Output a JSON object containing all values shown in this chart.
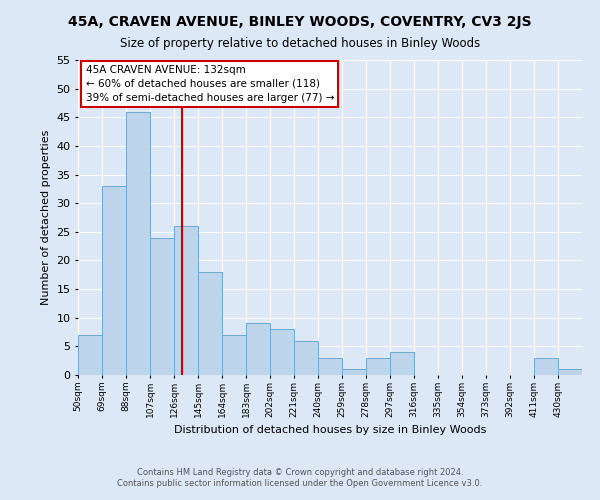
{
  "title": "45A, CRAVEN AVENUE, BINLEY WOODS, COVENTRY, CV3 2JS",
  "subtitle": "Size of property relative to detached houses in Binley Woods",
  "xlabel": "Distribution of detached houses by size in Binley Woods",
  "ylabel": "Number of detached properties",
  "bin_labels": [
    "50sqm",
    "69sqm",
    "88sqm",
    "107sqm",
    "126sqm",
    "145sqm",
    "164sqm",
    "183sqm",
    "202sqm",
    "221sqm",
    "240sqm",
    "259sqm",
    "278sqm",
    "297sqm",
    "316sqm",
    "335sqm",
    "354sqm",
    "373sqm",
    "392sqm",
    "411sqm",
    "430sqm"
  ],
  "bin_left_edges": [
    50,
    69,
    88,
    107,
    126,
    145,
    164,
    183,
    202,
    221,
    240,
    259,
    278,
    297,
    316,
    335,
    354,
    373,
    392,
    411,
    430
  ],
  "bin_width": 19,
  "bar_heights": [
    7,
    33,
    46,
    24,
    26,
    18,
    7,
    9,
    8,
    6,
    3,
    1,
    3,
    4,
    0,
    0,
    0,
    0,
    0,
    3,
    1
  ],
  "bar_color": "#bdd4ea",
  "bar_edge_color": "#6aaad4",
  "vline_x": 132,
  "vline_color": "#cc0000",
  "ylim_max": 55,
  "yticks": [
    0,
    5,
    10,
    15,
    20,
    25,
    30,
    35,
    40,
    45,
    50,
    55
  ],
  "annotation_text": "45A CRAVEN AVENUE: 132sqm\n← 60% of detached houses are smaller (118)\n39% of semi-detached houses are larger (77) →",
  "annotation_box_facecolor": "#ffffff",
  "annotation_box_edgecolor": "#cc0000",
  "bg_color": "#dce8f5",
  "grid_color": "#ffffff",
  "footer_line1": "Contains HM Land Registry data © Crown copyright and database right 2024.",
  "footer_line2": "Contains public sector information licensed under the Open Government Licence v3.0."
}
